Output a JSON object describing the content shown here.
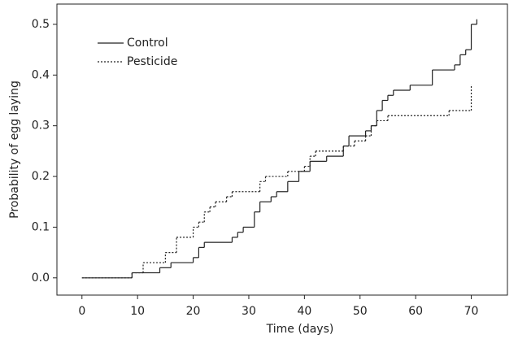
{
  "chart_data": {
    "type": "step",
    "step": "post",
    "x_label": "Time (days)",
    "y_label": "Probability of egg laying",
    "xlim": [
      -4.5,
      76.5
    ],
    "ylim": [
      -0.034,
      0.54
    ],
    "xticks": [
      0,
      10,
      20,
      30,
      40,
      50,
      60,
      70
    ],
    "yticks": [
      {
        "value": 0,
        "label": "0.0"
      },
      0.1,
      0.2,
      0.3,
      0.4,
      0.5
    ],
    "legend": "upper-left",
    "series": [
      {
        "name": "Control",
        "color": "#222222",
        "dash": "solid",
        "x": [
          0,
          9,
          14,
          16,
          20,
          21,
          22,
          27,
          28,
          29,
          31,
          32,
          34,
          35,
          37,
          39,
          41,
          44,
          47,
          48,
          51,
          52,
          53,
          54,
          55,
          56,
          59,
          63,
          67,
          68,
          69,
          70,
          71
        ],
        "values": [
          0,
          0.01,
          0.02,
          0.03,
          0.04,
          0.06,
          0.07,
          0.08,
          0.09,
          0.1,
          0.13,
          0.15,
          0.16,
          0.17,
          0.19,
          0.21,
          0.23,
          0.24,
          0.26,
          0.28,
          0.29,
          0.3,
          0.33,
          0.35,
          0.36,
          0.37,
          0.38,
          0.41,
          0.42,
          0.44,
          0.45,
          0.5,
          0.51
        ]
      },
      {
        "name": "Pesticide",
        "color": "#222222",
        "dash": "dotted",
        "x": [
          0,
          9,
          11,
          15,
          17,
          20,
          21,
          22,
          23,
          24,
          26,
          27,
          32,
          33,
          37,
          40,
          41,
          42,
          47,
          49,
          51,
          52,
          53,
          55,
          66,
          70
        ],
        "values": [
          0,
          0.01,
          0.03,
          0.05,
          0.08,
          0.1,
          0.11,
          0.13,
          0.14,
          0.15,
          0.16,
          0.17,
          0.19,
          0.2,
          0.21,
          0.22,
          0.24,
          0.25,
          0.26,
          0.27,
          0.28,
          0.3,
          0.31,
          0.32,
          0.33,
          0.38
        ]
      }
    ]
  }
}
